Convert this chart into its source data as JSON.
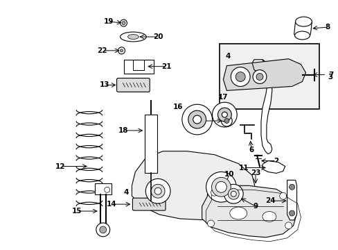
{
  "bg_color": "#ffffff",
  "line_color": "#000000",
  "fig_width": 4.89,
  "fig_height": 3.6,
  "dpi": 100,
  "fs": 7.5
}
